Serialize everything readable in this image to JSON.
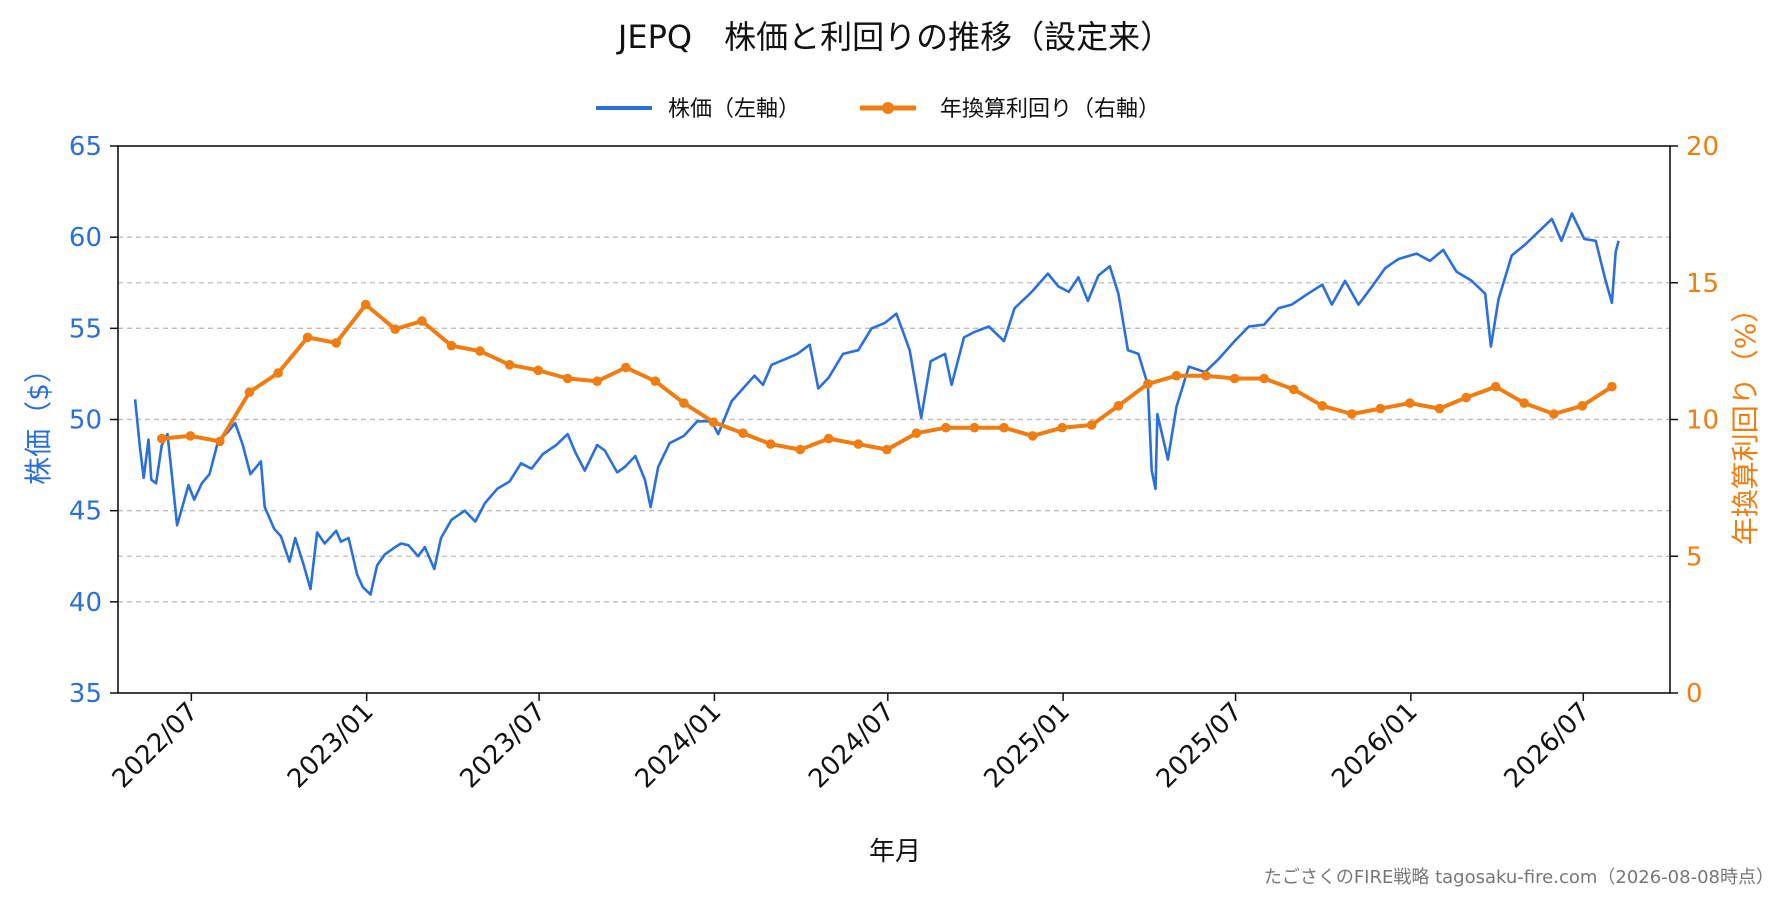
{
  "colors": {
    "price": "#2a6fdb",
    "yield": "#f07d12",
    "axis": "#111111",
    "grid": "#bdbdbd",
    "footer": "#777777"
  },
  "chart_data": {
    "type": "line",
    "title": "JEPQ　株価と利回りの推移（設定来）",
    "xlabel": "年月",
    "ylabel_left": "株価（$）",
    "ylabel_right": "年換算利回り（%）",
    "ylim_left": [
      35,
      65
    ],
    "ylim_right": [
      0,
      20
    ],
    "xlim": [
      "2022-04-15",
      "2026-09-30"
    ],
    "yticks_left": [
      "35",
      "40",
      "45",
      "50",
      "55",
      "60",
      "65"
    ],
    "yticks_right": [
      "0",
      "5",
      "10",
      "15",
      "20"
    ],
    "xticks": [
      {
        "date": "2022-07-01",
        "label": "2022/07"
      },
      {
        "date": "2023-01-01",
        "label": "2023/01"
      },
      {
        "date": "2023-07-01",
        "label": "2023/07"
      },
      {
        "date": "2024-01-01",
        "label": "2024/01"
      },
      {
        "date": "2024-07-01",
        "label": "2024/07"
      },
      {
        "date": "2025-01-01",
        "label": "2025/01"
      },
      {
        "date": "2025-07-01",
        "label": "2025/07"
      },
      {
        "date": "2026-01-01",
        "label": "2026/01"
      },
      {
        "date": "2026-07-01",
        "label": "2026/07"
      }
    ],
    "grid": "horizontal dashed",
    "legend_placement": "top-center",
    "series": [
      {
        "name": "株価（左軸）",
        "axis": "left",
        "style": "line",
        "points": [
          [
            "2022-05-03",
            51.1
          ],
          [
            "2022-05-08",
            48.5
          ],
          [
            "2022-05-12",
            46.8
          ],
          [
            "2022-05-17",
            48.9
          ],
          [
            "2022-05-20",
            46.7
          ],
          [
            "2022-05-25",
            46.5
          ],
          [
            "2022-05-31",
            48.6
          ],
          [
            "2022-06-06",
            49.2
          ],
          [
            "2022-06-10",
            47.2
          ],
          [
            "2022-06-16",
            44.2
          ],
          [
            "2022-06-22",
            45.3
          ],
          [
            "2022-06-28",
            46.4
          ],
          [
            "2022-07-04",
            45.6
          ],
          [
            "2022-07-12",
            46.5
          ],
          [
            "2022-07-20",
            47.0
          ],
          [
            "2022-07-29",
            48.8
          ],
          [
            "2022-08-08",
            49.3
          ],
          [
            "2022-08-16",
            49.8
          ],
          [
            "2022-08-24",
            48.6
          ],
          [
            "2022-09-01",
            47.0
          ],
          [
            "2022-09-12",
            47.7
          ],
          [
            "2022-09-16",
            45.2
          ],
          [
            "2022-09-26",
            44.0
          ],
          [
            "2022-10-03",
            43.6
          ],
          [
            "2022-10-12",
            42.2
          ],
          [
            "2022-10-18",
            43.5
          ],
          [
            "2022-10-27",
            42.0
          ],
          [
            "2022-11-03",
            40.7
          ],
          [
            "2022-11-10",
            43.8
          ],
          [
            "2022-11-18",
            43.2
          ],
          [
            "2022-11-30",
            43.9
          ],
          [
            "2022-12-05",
            43.3
          ],
          [
            "2022-12-13",
            43.5
          ],
          [
            "2022-12-22",
            41.5
          ],
          [
            "2022-12-28",
            40.8
          ],
          [
            "2023-01-05",
            40.4
          ],
          [
            "2023-01-12",
            42.0
          ],
          [
            "2023-01-20",
            42.6
          ],
          [
            "2023-01-31",
            43.0
          ],
          [
            "2023-02-06",
            43.2
          ],
          [
            "2023-02-14",
            43.1
          ],
          [
            "2023-02-24",
            42.5
          ],
          [
            "2023-03-03",
            43.0
          ],
          [
            "2023-03-13",
            41.8
          ],
          [
            "2023-03-20",
            43.5
          ],
          [
            "2023-03-31",
            44.5
          ],
          [
            "2023-04-14",
            45.0
          ],
          [
            "2023-04-25",
            44.4
          ],
          [
            "2023-05-05",
            45.4
          ],
          [
            "2023-05-18",
            46.2
          ],
          [
            "2023-05-31",
            46.6
          ],
          [
            "2023-06-12",
            47.6
          ],
          [
            "2023-06-23",
            47.3
          ],
          [
            "2023-07-05",
            48.1
          ],
          [
            "2023-07-19",
            48.6
          ],
          [
            "2023-07-31",
            49.2
          ],
          [
            "2023-08-08",
            48.2
          ],
          [
            "2023-08-18",
            47.2
          ],
          [
            "2023-08-31",
            48.6
          ],
          [
            "2023-09-08",
            48.3
          ],
          [
            "2023-09-21",
            47.1
          ],
          [
            "2023-09-29",
            47.4
          ],
          [
            "2023-10-10",
            48.0
          ],
          [
            "2023-10-20",
            46.7
          ],
          [
            "2023-10-26",
            45.2
          ],
          [
            "2023-11-03",
            47.4
          ],
          [
            "2023-11-15",
            48.7
          ],
          [
            "2023-11-30",
            49.1
          ],
          [
            "2023-12-14",
            49.9
          ],
          [
            "2023-12-29",
            49.9
          ],
          [
            "2024-01-05",
            49.2
          ],
          [
            "2024-01-19",
            51.0
          ],
          [
            "2024-01-31",
            51.7
          ],
          [
            "2024-02-12",
            52.4
          ],
          [
            "2024-02-21",
            51.9
          ],
          [
            "2024-03-01",
            53.0
          ],
          [
            "2024-03-15",
            53.3
          ],
          [
            "2024-03-28",
            53.6
          ],
          [
            "2024-04-10",
            54.1
          ],
          [
            "2024-04-19",
            51.7
          ],
          [
            "2024-04-30",
            52.3
          ],
          [
            "2024-05-15",
            53.6
          ],
          [
            "2024-05-31",
            53.8
          ],
          [
            "2024-06-14",
            55.0
          ],
          [
            "2024-06-28",
            55.3
          ],
          [
            "2024-07-10",
            55.8
          ],
          [
            "2024-07-24",
            53.8
          ],
          [
            "2024-08-05",
            50.1
          ],
          [
            "2024-08-15",
            53.2
          ],
          [
            "2024-08-30",
            53.6
          ],
          [
            "2024-09-06",
            51.9
          ],
          [
            "2024-09-19",
            54.5
          ],
          [
            "2024-09-30",
            54.8
          ],
          [
            "2024-10-15",
            55.1
          ],
          [
            "2024-10-31",
            54.3
          ],
          [
            "2024-11-11",
            56.1
          ],
          [
            "2024-11-29",
            57.0
          ],
          [
            "2024-12-16",
            58.0
          ],
          [
            "2024-12-27",
            57.3
          ],
          [
            "2025-01-07",
            57.0
          ],
          [
            "2025-01-17",
            57.8
          ],
          [
            "2025-01-27",
            56.5
          ],
          [
            "2025-02-07",
            57.9
          ],
          [
            "2025-02-19",
            58.4
          ],
          [
            "2025-02-28",
            56.9
          ],
          [
            "2025-03-10",
            53.8
          ],
          [
            "2025-03-21",
            53.6
          ],
          [
            "2025-03-31",
            51.9
          ],
          [
            "2025-04-04",
            47.2
          ],
          [
            "2025-04-08",
            46.2
          ],
          [
            "2025-04-10",
            50.3
          ],
          [
            "2025-04-21",
            47.8
          ],
          [
            "2025-04-30",
            50.7
          ],
          [
            "2025-05-13",
            52.9
          ],
          [
            "2025-05-30",
            52.6
          ],
          [
            "2025-06-13",
            53.3
          ],
          [
            "2025-06-30",
            54.3
          ],
          [
            "2025-07-15",
            55.1
          ],
          [
            "2025-07-31",
            55.2
          ],
          [
            "2025-08-15",
            56.1
          ],
          [
            "2025-08-29",
            56.3
          ],
          [
            "2025-09-15",
            56.9
          ],
          [
            "2025-09-30",
            57.4
          ],
          [
            "2025-10-10",
            56.3
          ],
          [
            "2025-10-24",
            57.6
          ],
          [
            "2025-11-07",
            56.3
          ],
          [
            "2025-11-20",
            57.2
          ],
          [
            "2025-12-05",
            58.3
          ],
          [
            "2025-12-19",
            58.8
          ],
          [
            "2026-01-07",
            59.1
          ],
          [
            "2026-01-21",
            58.7
          ],
          [
            "2026-02-04",
            59.3
          ],
          [
            "2026-02-18",
            58.1
          ],
          [
            "2026-03-06",
            57.6
          ],
          [
            "2026-03-20",
            56.9
          ],
          [
            "2026-03-26",
            54.0
          ],
          [
            "2026-04-03",
            56.6
          ],
          [
            "2026-04-17",
            59.0
          ],
          [
            "2026-05-01",
            59.6
          ],
          [
            "2026-05-15",
            60.3
          ],
          [
            "2026-05-29",
            61.0
          ],
          [
            "2026-06-08",
            59.8
          ],
          [
            "2026-06-19",
            61.3
          ],
          [
            "2026-07-02",
            59.9
          ],
          [
            "2026-07-14",
            59.8
          ],
          [
            "2026-07-24",
            57.7
          ],
          [
            "2026-07-31",
            56.4
          ],
          [
            "2026-08-04",
            59.2
          ],
          [
            "2026-08-07",
            59.8
          ]
        ]
      },
      {
        "name": "年換算利回り（右軸）",
        "axis": "right",
        "style": "line+markers",
        "points": [
          [
            "2022-05-31",
            9.3
          ],
          [
            "2022-06-30",
            9.4
          ],
          [
            "2022-07-31",
            9.2
          ],
          [
            "2022-08-31",
            11.0
          ],
          [
            "2022-09-30",
            11.7
          ],
          [
            "2022-10-31",
            13.0
          ],
          [
            "2022-11-30",
            12.8
          ],
          [
            "2022-12-31",
            14.2
          ],
          [
            "2023-01-31",
            13.3
          ],
          [
            "2023-02-28",
            13.6
          ],
          [
            "2023-03-31",
            12.7
          ],
          [
            "2023-04-30",
            12.5
          ],
          [
            "2023-05-31",
            12.0
          ],
          [
            "2023-06-30",
            11.8
          ],
          [
            "2023-07-31",
            11.5
          ],
          [
            "2023-08-31",
            11.4
          ],
          [
            "2023-09-30",
            11.9
          ],
          [
            "2023-10-31",
            11.4
          ],
          [
            "2023-11-30",
            10.6
          ],
          [
            "2023-12-31",
            9.9
          ],
          [
            "2024-01-31",
            9.5
          ],
          [
            "2024-02-29",
            9.1
          ],
          [
            "2024-03-31",
            8.9
          ],
          [
            "2024-04-30",
            9.3
          ],
          [
            "2024-05-31",
            9.1
          ],
          [
            "2024-06-30",
            8.9
          ],
          [
            "2024-07-31",
            9.5
          ],
          [
            "2024-08-31",
            9.7
          ],
          [
            "2024-09-30",
            9.7
          ],
          [
            "2024-10-31",
            9.7
          ],
          [
            "2024-11-30",
            9.4
          ],
          [
            "2024-12-31",
            9.7
          ],
          [
            "2025-01-31",
            9.8
          ],
          [
            "2025-02-28",
            10.5
          ],
          [
            "2025-03-31",
            11.3
          ],
          [
            "2025-04-30",
            11.6
          ],
          [
            "2025-05-31",
            11.6
          ],
          [
            "2025-06-30",
            11.5
          ],
          [
            "2025-07-31",
            11.5
          ],
          [
            "2025-08-31",
            11.1
          ],
          [
            "2025-09-30",
            10.5
          ],
          [
            "2025-10-31",
            10.2
          ],
          [
            "2025-11-30",
            10.4
          ],
          [
            "2025-12-31",
            10.6
          ],
          [
            "2026-01-31",
            10.4
          ],
          [
            "2026-02-28",
            10.8
          ],
          [
            "2026-03-31",
            11.2
          ],
          [
            "2026-04-30",
            10.6
          ],
          [
            "2026-05-31",
            10.2
          ],
          [
            "2026-06-30",
            10.5
          ],
          [
            "2026-07-31",
            11.2
          ]
        ]
      }
    ]
  },
  "footer": "たごさくのFIRE戦略 tagosaku-fire.com（2026-08-08時点）"
}
